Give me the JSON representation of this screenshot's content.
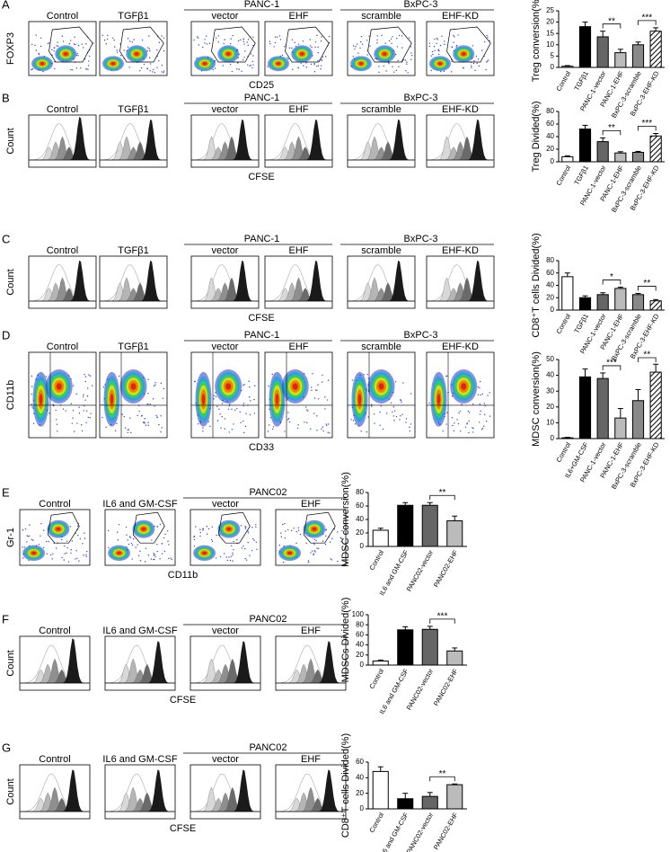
{
  "figure": {
    "rows": [
      {
        "letter": "A",
        "labels": [
          "Control",
          "TGFβ1",
          "vector",
          "EHF",
          "scramble",
          "EHF-KD"
        ],
        "groups": [
          {
            "name": "PANC-1",
            "start": 2,
            "end": 3
          },
          {
            "name": "BxPC-3",
            "start": 4,
            "end": 5
          }
        ],
        "x_label": "CD25",
        "y_label": "FOXP3"
      },
      {
        "letter": "B",
        "labels": [
          "Control",
          "TGFβ1",
          "vector",
          "EHF",
          "scramble",
          "EHF-KD"
        ],
        "groups": [
          {
            "name": "PANC-1",
            "start": 2,
            "end": 3
          },
          {
            "name": "BxPC-3",
            "start": 4,
            "end": 5
          }
        ],
        "x_label": "CFSE",
        "y_label": "Count"
      },
      {
        "letter": "C",
        "labels": [
          "Control",
          "TGFβ1",
          "vector",
          "EHF",
          "scramble",
          "EHF-KD"
        ],
        "groups": [
          {
            "name": "PANC-1",
            "start": 2,
            "end": 3
          },
          {
            "name": "BxPC-3",
            "start": 4,
            "end": 5
          }
        ],
        "x_label": "CFSE",
        "y_label": "Count"
      },
      {
        "letter": "D",
        "labels": [
          "Control",
          "TGFβ1",
          "vector",
          "EHF",
          "scramble",
          "EHF-KD"
        ],
        "groups": [
          {
            "name": "PANC-1",
            "start": 2,
            "end": 3
          },
          {
            "name": "BxPC-3",
            "start": 4,
            "end": 5
          }
        ],
        "x_label": "CD33",
        "y_label": "CD11b"
      },
      {
        "letter": "E",
        "labels": [
          "Control",
          "IL6 and GM-CSF",
          "vector",
          "EHF"
        ],
        "groups": [
          {
            "name": "PANC02",
            "start": 2,
            "end": 3
          }
        ],
        "x_label": "CD11b",
        "y_label": "Gr-1"
      },
      {
        "letter": "F",
        "labels": [
          "Control",
          "IL6 and GM-CSF",
          "vector",
          "EHF"
        ],
        "groups": [
          {
            "name": "PANC02",
            "start": 2,
            "end": 3
          }
        ],
        "x_label": "CFSE",
        "y_label": "Count"
      },
      {
        "letter": "G",
        "labels": [
          "Control",
          "IL6 and GM-CSF",
          "vector",
          "EHF"
        ],
        "groups": [
          {
            "name": "PANC02",
            "start": 2,
            "end": 3
          }
        ],
        "x_label": "CFSE",
        "y_label": "Count"
      }
    ]
  },
  "chart_data": [
    {
      "type": "bar",
      "y_label": "Treg conversion(%)",
      "categories": [
        "Control",
        "TGFβ1",
        "PANC-1-vector",
        "PANC-1-EHF",
        "BxPC-3-scramble",
        "BxPC-3-EHF-KD"
      ],
      "values": [
        0.5,
        18,
        13.5,
        6.5,
        10,
        16
      ],
      "errors": [
        0.3,
        2,
        2.5,
        1.5,
        1.2,
        1.5
      ],
      "colors": [
        "#ffffff",
        "#000000",
        "#666666",
        "#bbbbbb",
        "#888888",
        "#ffffff"
      ],
      "patterns": [
        "solid",
        "solid",
        "solid",
        "solid",
        "solid",
        "hatch"
      ],
      "ylim": [
        0,
        25
      ],
      "yticks": [
        0,
        5,
        10,
        15,
        20,
        25
      ],
      "significance": [
        {
          "label": "**",
          "from": 2,
          "to": 3
        },
        {
          "label": "***",
          "from": 4,
          "to": 5
        }
      ]
    },
    {
      "type": "bar",
      "y_label": "Treg Divided(%)",
      "categories": [
        "Control",
        "TGFβ1",
        "PANC-1-vector",
        "PANC-1-EHF",
        "BxPC-3-scramble",
        "BxPC-3-EHF-KD"
      ],
      "values": [
        8,
        52,
        32,
        14,
        15,
        41
      ],
      "errors": [
        1.5,
        6,
        6,
        2,
        1.5,
        4
      ],
      "colors": [
        "#ffffff",
        "#000000",
        "#666666",
        "#bbbbbb",
        "#888888",
        "#ffffff"
      ],
      "patterns": [
        "solid",
        "solid",
        "solid",
        "solid",
        "solid",
        "hatch"
      ],
      "ylim": [
        0,
        80
      ],
      "yticks": [
        0,
        20,
        40,
        60,
        80
      ],
      "significance": [
        {
          "label": "**",
          "from": 2,
          "to": 3
        },
        {
          "label": "***",
          "from": 4,
          "to": 5
        }
      ]
    },
    {
      "type": "bar",
      "y_label": "CD8⁺T cells Divided(%)",
      "categories": [
        "Control",
        "TGFβ1",
        "PANC-1-vector",
        "PANC-1-EHF",
        "BxPC-3-scramble",
        "BxPC-3-EHF-KD"
      ],
      "values": [
        54,
        20,
        25,
        35,
        25,
        15
      ],
      "errors": [
        6,
        3,
        3,
        2,
        2,
        2
      ],
      "colors": [
        "#ffffff",
        "#000000",
        "#666666",
        "#bbbbbb",
        "#888888",
        "#ffffff"
      ],
      "patterns": [
        "solid",
        "solid",
        "solid",
        "solid",
        "solid",
        "hatch"
      ],
      "ylim": [
        0,
        80
      ],
      "yticks": [
        0,
        20,
        40,
        60,
        80
      ],
      "significance": [
        {
          "label": "*",
          "from": 2,
          "to": 3
        },
        {
          "label": "**",
          "from": 4,
          "to": 5
        }
      ]
    },
    {
      "type": "bar",
      "y_label": "MDSC conversion(%)",
      "categories": [
        "Control",
        "IL6+GM-CSF",
        "PANC-1-vector",
        "PANC-1-EHF",
        "BxPC-3-scramble",
        "BxPC-3-EHF-KD"
      ],
      "values": [
        0.5,
        39,
        38,
        13,
        24,
        42
      ],
      "errors": [
        0.3,
        5,
        3.5,
        6,
        7,
        5
      ],
      "colors": [
        "#ffffff",
        "#000000",
        "#666666",
        "#bbbbbb",
        "#888888",
        "#ffffff"
      ],
      "patterns": [
        "solid",
        "solid",
        "solid",
        "solid",
        "solid",
        "hatch"
      ],
      "ylim": [
        0,
        50
      ],
      "yticks": [
        0,
        10,
        20,
        30,
        40,
        50
      ],
      "significance": [
        {
          "label": "***",
          "from": 2,
          "to": 3
        },
        {
          "label": "**",
          "from": 4,
          "to": 5
        }
      ]
    },
    {
      "type": "bar",
      "y_label": "MDSC conversion(%)",
      "categories": [
        "Control",
        "IL6 and GM-CSF",
        "PANC02-vector",
        "PANC02-EHF"
      ],
      "values": [
        24,
        61,
        61,
        38
      ],
      "errors": [
        3,
        4,
        4,
        7
      ],
      "colors": [
        "#ffffff",
        "#000000",
        "#666666",
        "#bbbbbb"
      ],
      "patterns": [
        "solid",
        "solid",
        "solid",
        "solid"
      ],
      "ylim": [
        0,
        80
      ],
      "yticks": [
        0,
        20,
        40,
        60,
        80
      ],
      "significance": [
        {
          "label": "**",
          "from": 2,
          "to": 3
        }
      ]
    },
    {
      "type": "bar",
      "y_label": "MDSCs Divided(%)",
      "categories": [
        "Control",
        "IL6 and GM-CSF",
        "PANC02-vector",
        "PANC02-EHF"
      ],
      "values": [
        8,
        70,
        71,
        28
      ],
      "errors": [
        2,
        6,
        6,
        6
      ],
      "colors": [
        "#ffffff",
        "#000000",
        "#666666",
        "#bbbbbb"
      ],
      "patterns": [
        "solid",
        "solid",
        "solid",
        "solid"
      ],
      "ylim": [
        0,
        100
      ],
      "yticks": [
        0,
        20,
        40,
        60,
        80,
        100
      ],
      "significance": [
        {
          "label": "***",
          "from": 2,
          "to": 3
        }
      ]
    },
    {
      "type": "bar",
      "y_label": "CD8⁺T cells Divided(%)",
      "categories": [
        "Control",
        "IL6 and GM-CSF",
        "PANC02-vector",
        "PANC02-EHF"
      ],
      "values": [
        48,
        13,
        16,
        31
      ],
      "errors": [
        6,
        7,
        5,
        1
      ],
      "colors": [
        "#ffffff",
        "#000000",
        "#666666",
        "#bbbbbb"
      ],
      "patterns": [
        "solid",
        "solid",
        "solid",
        "solid"
      ],
      "ylim": [
        0,
        60
      ],
      "yticks": [
        0,
        20,
        40,
        60
      ],
      "significance": [
        {
          "label": "**",
          "from": 2,
          "to": 3
        }
      ]
    }
  ]
}
